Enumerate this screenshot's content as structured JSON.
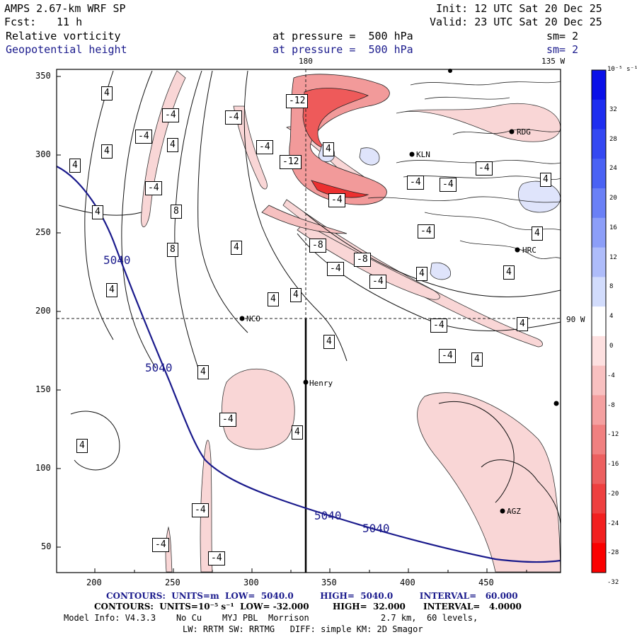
{
  "header": {
    "model": "AMPS 2.67-km WRF SP",
    "fcst_label": "Fcst:",
    "fcst_value": "11 h",
    "init": "Init: 12 UTC Sat 20 Dec 25",
    "valid": "Valid: 23 UTC Sat 20 Dec 25",
    "field1": "Relative vorticity",
    "field2": "Geopotential height",
    "pressure1": "at pressure =  500 hPa",
    "pressure2": "at pressure =  500 hPa",
    "sm1": "sm= 2",
    "sm2": "sm= 2"
  },
  "map": {
    "meridian_180": "180",
    "meridian_135w": "135 W",
    "parallel_90w": "90 W",
    "x_ticks": [
      "200",
      "250",
      "300",
      "350",
      "400",
      "450"
    ],
    "y_ticks": [
      "350",
      "300",
      "250",
      "200",
      "150",
      "100",
      "50"
    ],
    "stations": [
      {
        "name": "NCO"
      },
      {
        "name": "Henry"
      },
      {
        "name": "KLN"
      },
      {
        "name": "RDG"
      },
      {
        "name": "HRC"
      },
      {
        "name": "AGZ"
      }
    ],
    "height_labels": [
      "5040",
      "5040",
      "5040",
      "5040"
    ],
    "vort_labels": [
      "4",
      "4",
      "4",
      "4",
      "4",
      "-4",
      "-4",
      "-4",
      "-4",
      "-4",
      "-4",
      "-4",
      "-4",
      "-4",
      "-12",
      "-12",
      "4",
      "-4",
      "-8",
      "-8",
      "-4",
      "-4",
      "4",
      "4",
      "4",
      "4",
      "8",
      "8",
      "4",
      "4",
      "4",
      "4",
      "4",
      "-4",
      "-4",
      "-4",
      "-4",
      "-4",
      "-4",
      "4",
      "4",
      "4",
      "4",
      "4"
    ]
  },
  "colorbar": {
    "units": "10⁻⁵ s⁻¹",
    "ticks": [
      "32",
      "28",
      "24",
      "20",
      "16",
      "12",
      "8",
      "4",
      "0",
      "-4",
      "-8",
      "-12",
      "-16",
      "-20",
      "-24",
      "-28",
      "-32"
    ],
    "colors": [
      "#0a10e8",
      "#1e2ef0",
      "#3448f2",
      "#4a62f4",
      "#6a80f6",
      "#8c9ef8",
      "#aebcfa",
      "#d2dcfc",
      "#ffffff",
      "#fde0e0",
      "#f8c0c0",
      "#f4a0a0",
      "#f08080",
      "#ec6060",
      "#ee4040",
      "#f22020",
      "#fa0000"
    ]
  },
  "footer": {
    "line1": "CONTOURS:  UNITS=m  LOW=  5040.0         HIGH=  5040.0         INTERVAL=   60.000",
    "line2": "CONTOURS:  UNITS=10⁻⁵ s⁻¹  LOW= -32.000        HIGH=  32.000      INTERVAL=   4.0000",
    "line3": "Model Info: V4.3.3    No Cu    MYJ PBL  Morrison              2.7 km,  60 levels,",
    "line4": "LW: RRTM SW: RRTMG   DIFF: simple KM: 2D Smagor"
  }
}
